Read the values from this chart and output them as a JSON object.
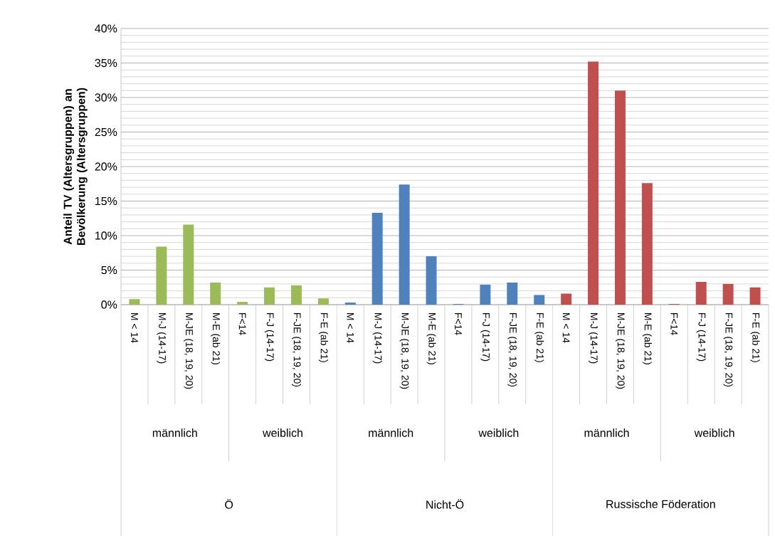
{
  "chart_data": {
    "type": "bar",
    "ylabel": "Anteil TV (Altersgruppen) an Bevölkerung (Altersgruppen)",
    "categories": [
      "M < 14",
      "M-J (14-17)",
      "M-JE (18, 19, 20)",
      "M-E (ab 21)",
      "F<14",
      "F-J (14-17)",
      "F-JE (18, 19, 20)",
      "F-E (ab 21)",
      "M < 14",
      "M-J (14-17)",
      "M-JE (18, 19, 20)",
      "M-E (ab 21)",
      "F<14",
      "F-J (14-17)",
      "F-JE (18, 19, 20)",
      "F-E (ab 21)",
      "M < 14",
      "M-J (14-17)",
      "M-JE (18, 19, 20)",
      "M-E (ab 21)",
      "F<14",
      "F-J (14-17)",
      "F-JE (18, 19, 20)",
      "F-E (ab 21)"
    ],
    "values": [
      0.8,
      8.4,
      11.6,
      3.2,
      0.4,
      2.5,
      2.8,
      0.9,
      0.3,
      13.3,
      17.4,
      7.0,
      0.1,
      2.9,
      3.2,
      1.4,
      1.6,
      35.2,
      31.0,
      17.6,
      0.1,
      3.3,
      3.0,
      2.5
    ],
    "colors": [
      "#9bbb59",
      "#9bbb59",
      "#9bbb59",
      "#9bbb59",
      "#9bbb59",
      "#9bbb59",
      "#9bbb59",
      "#9bbb59",
      "#4f81bd",
      "#4f81bd",
      "#4f81bd",
      "#4f81bd",
      "#4f81bd",
      "#4f81bd",
      "#4f81bd",
      "#4f81bd",
      "#c0504d",
      "#c0504d",
      "#c0504d",
      "#c0504d",
      "#c0504d",
      "#c0504d",
      "#c0504d",
      "#c0504d"
    ],
    "ylim": [
      0,
      40
    ],
    "yticks": [
      {
        "value": 0,
        "label": "0%"
      },
      {
        "value": 5,
        "label": "5%"
      },
      {
        "value": 10,
        "label": "10%"
      },
      {
        "value": 15,
        "label": "15%"
      },
      {
        "value": 20,
        "label": "20%"
      },
      {
        "value": 25,
        "label": "25%"
      },
      {
        "value": 30,
        "label": "30%"
      },
      {
        "value": 35,
        "label": "35%"
      },
      {
        "value": 40,
        "label": "40%"
      }
    ],
    "grid": "y",
    "annotations": [
      "männlich",
      "weiblich",
      "männlich",
      "weiblich",
      "männlich",
      "weiblich",
      "Ö",
      "Nicht-Ö",
      "Russische Föderation"
    ]
  }
}
